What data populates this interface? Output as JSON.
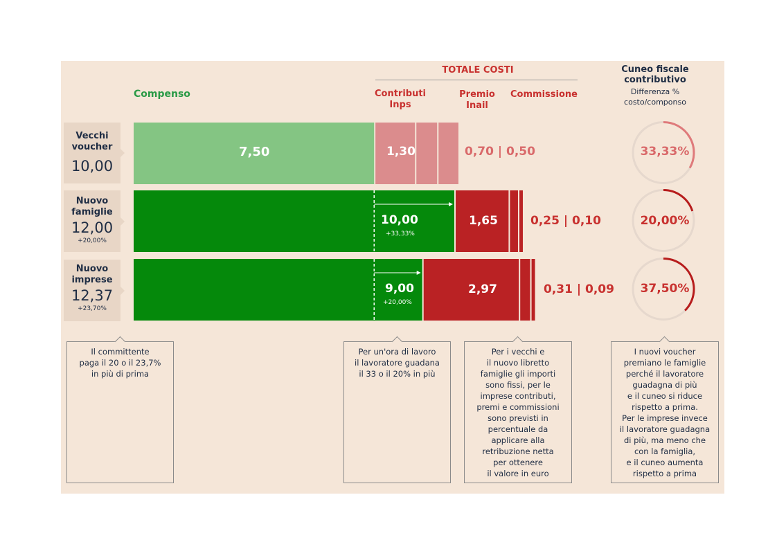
{
  "headers": {
    "totale_costi": "TOTALE COSTI",
    "compenso": "Compenso",
    "contributi": [
      "Contributi",
      "Inps"
    ],
    "premio": [
      "Premio",
      "Inail"
    ],
    "commissione": "Commissione",
    "cuneo_title": [
      "Cuneo fiscale",
      "contributivo"
    ],
    "cuneo_sub": [
      "Differenza %",
      "costo/componso"
    ]
  },
  "rows": [
    {
      "name": [
        "Vecchi",
        "voucher"
      ],
      "total": "10,00",
      "change": ""
    },
    {
      "name": [
        "Nuovo",
        "famiglie"
      ],
      "total": "12,00",
      "change": "+20,00%"
    },
    {
      "name": [
        "Nuovo",
        "imprese"
      ],
      "total": "12,37",
      "change": "+23,70%"
    }
  ],
  "chart_data": {
    "type": "bar",
    "orientation": "horizontal",
    "stacked": true,
    "categories": [
      "Vecchi voucher",
      "Nuovo famiglie",
      "Nuovo imprese"
    ],
    "series": [
      {
        "name": "Compenso",
        "values": [
          7.5,
          10.0,
          9.0
        ],
        "labels": [
          "7,50",
          "10,00",
          "9,00"
        ],
        "sublabels": [
          "",
          "+33,33%",
          "+20,00%"
        ]
      },
      {
        "name": "Contributi Inps",
        "values": [
          1.3,
          1.65,
          2.97
        ],
        "labels": [
          "1,30",
          "1,65",
          "2,97"
        ]
      },
      {
        "name": "Premio Inail",
        "values": [
          0.7,
          0.25,
          0.31
        ],
        "labels": [
          "0,70",
          "0,25",
          "0,31"
        ]
      },
      {
        "name": "Commissione",
        "values": [
          0.5,
          0.1,
          0.09
        ],
        "labels": [
          "0,50",
          "0,10",
          "0,09"
        ]
      }
    ],
    "totals": [
      10.0,
      12.0,
      12.37
    ],
    "cuneo_percent": [
      33.33,
      20.0,
      37.5
    ],
    "cuneo_labels": [
      "33,33%",
      "20,00%",
      "37,50%"
    ],
    "reference_line": 7.5,
    "colors": {
      "old_compenso": "#84c583",
      "old_costs": "#db8c8d",
      "old_text": "#d9696a",
      "new_compenso": "#05890b",
      "new_costs": "#ba2224",
      "new_text": "#c8312f",
      "ring_track": "#e6d8cd",
      "ring_old": "#df7a7b",
      "ring_new": "#b71c1c"
    }
  },
  "notes": [
    [
      "Il committente",
      "paga il 20 o il 23,7%",
      "in più di prima"
    ],
    [
      "Per un'ora di lavoro",
      "il lavoratore guadana",
      "il 33 o il 20% in più"
    ],
    [
      "Per i vecchi e",
      "il nuovo libretto",
      "famiglie gli importi",
      "sono fissi, per le",
      "imprese contributi,",
      "premi e commissioni",
      "sono previsti in",
      "percentuale da",
      "applicare alla",
      "retribuzione netta",
      "per ottenere",
      "il valore in euro"
    ],
    [
      "I nuovi voucher",
      "premiano le famiglie",
      "perché il lavoratore",
      "guadagna di più",
      "e il cuneo si riduce",
      "rispetto a prima.",
      "Per le imprese invece",
      "il lavoratore guadagna",
      "di più, ma meno che",
      "con la famiglia,",
      "e il cuneo aumenta",
      "rispetto a prima"
    ]
  ]
}
